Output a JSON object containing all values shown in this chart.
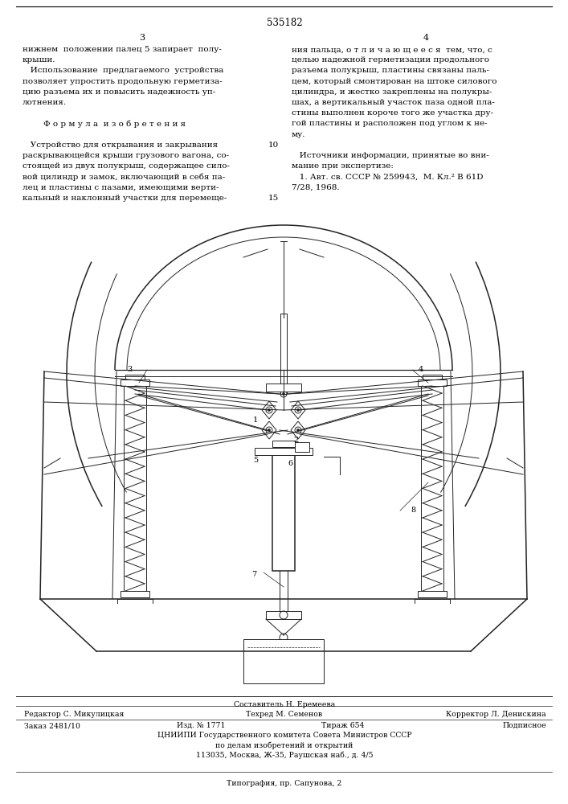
{
  "patent_number": "535182",
  "page_col1": "3",
  "page_col2": "4",
  "background_color": "#ffffff",
  "text_color": "#000000",
  "col1_text": [
    "нижнем  положении палец 5 запирает  полу-",
    "крыши.",
    "   Использование  предлагаемого  устройства",
    "позволяет упростить продольную герметиза-",
    "цию разъема их и повысить надежность уп-",
    "лотнения.",
    "",
    "        Ф о р м у л а  и з о б р е т е н и я",
    "",
    "   Устройство для открывания и закрывания",
    "раскрывающейся крыши грузового вагона, со-",
    "стоящей из двух полукрыш, содержащее сило-",
    "вой цилиндр и замок, включающий в себя па-",
    "лец и пластины с пазами, имеющими верти-",
    "кальный и наклонный участки для перемеще-"
  ],
  "col1_line_numbers": [
    null,
    null,
    null,
    null,
    null,
    null,
    null,
    null,
    null,
    "10",
    null,
    null,
    null,
    null,
    "15"
  ],
  "col2_text": [
    "ния пальца, о т л и ч а ю щ е е с я  тем, что, с",
    "целью надежной герметизации продольного",
    "разъема полукрыш, пластины связаны паль-",
    "цем, который смонтирован на штоке силового",
    "цилиндра, и жестко закреплены на полукры-",
    "шах, а вертикальный участок паза одной пла-",
    "стины выполнен короче того же участка дру-",
    "гой пластины и расположен под углом к не-",
    "му.",
    "",
    "   Источники информации, принятые во вни-",
    "мание при экспертизе:",
    "   1. Авт. св. СССР № 259943,  М. Кл.² В 61D",
    "7/28, 1968."
  ],
  "footer_line0": "Составитель Н. Еремеева",
  "footer_editor": "Редактор С. Микулицкая",
  "footer_tech": "Техред М. Семенов",
  "footer_corr": "Корректор Л. Денискина",
  "footer_order": "Заказ 2481/10",
  "footer_izd": "Изд. № 1771",
  "footer_tirazh": "Тираж 654",
  "footer_podp": "Подписное",
  "footer_org": "ЦНИИПИ Государственного комитета Совета Министров СССР",
  "footer_dept": "по делам изобретений и открытий",
  "footer_addr": "113035, Москва, Ж-35, Раушская наб., д. 4/5",
  "footer_print": "Типография, пр. Сапунова, 2"
}
